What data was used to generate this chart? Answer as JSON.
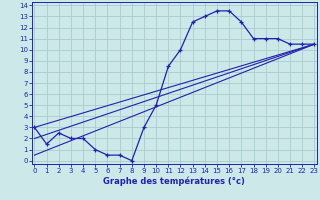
{
  "xlabel": "Graphe des températures (°c)",
  "bg_color": "#cce8e8",
  "line_color": "#2222aa",
  "grid_color": "#aacccc",
  "xmin": 0,
  "xmax": 23,
  "ymin": 0,
  "ymax": 14,
  "xticks": [
    0,
    1,
    2,
    3,
    4,
    5,
    6,
    7,
    8,
    9,
    10,
    11,
    12,
    13,
    14,
    15,
    16,
    17,
    18,
    19,
    20,
    21,
    22,
    23
  ],
  "yticks": [
    0,
    1,
    2,
    3,
    4,
    5,
    6,
    7,
    8,
    9,
    10,
    11,
    12,
    13,
    14
  ],
  "hourly_temps": [
    3,
    1.5,
    2.5,
    2,
    2,
    1,
    0.5,
    0.5,
    0,
    3,
    5,
    8.5,
    10,
    12.5,
    13,
    13.5,
    13.5,
    12.5,
    11,
    11,
    11,
    10.5,
    10.5,
    10.5
  ],
  "diag_lines": [
    {
      "x": [
        0,
        23
      ],
      "y": [
        3.0,
        10.5
      ]
    },
    {
      "x": [
        0,
        23
      ],
      "y": [
        2.0,
        10.5
      ]
    },
    {
      "x": [
        0,
        23
      ],
      "y": [
        0.5,
        10.5
      ]
    }
  ],
  "tick_fontsize": 5,
  "xlabel_fontsize": 6
}
